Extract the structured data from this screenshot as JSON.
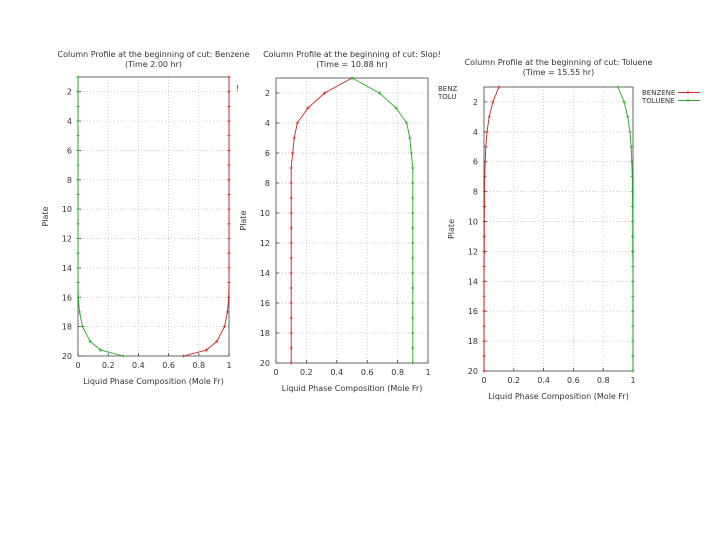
{
  "chart_data": [
    {
      "type": "line",
      "title": "Column Profile at the beginning of cut: Benzene",
      "subtitle": "(Time     2.00 hr)",
      "xlabel": "Liquid Phase Composition (Mole Fr)",
      "ylabel": "Plate",
      "xlim": [
        0,
        1
      ],
      "ylim": [
        20,
        1
      ],
      "y_inverted": true,
      "grid": true,
      "x_ticks": [
        "0",
        "0.2",
        "0.4",
        "0.6",
        "0.8",
        "1"
      ],
      "y_ticks": [
        "2",
        "4",
        "6",
        "8",
        "10",
        "12",
        "14",
        "16",
        "18",
        "20"
      ],
      "legend_text": "!",
      "colors": {
        "benzene": "#cc2222",
        "toluene": "#22aa22"
      },
      "series": [
        {
          "color": "#cc2222",
          "x": [
            1.0,
            1.0,
            1.0,
            1.0,
            1.0,
            1.0,
            1.0,
            1.0,
            1.0,
            1.0,
            1.0,
            1.0,
            1.0,
            1.0,
            1.0,
            0.998,
            0.99,
            0.97,
            0.92,
            0.85,
            0.7
          ],
          "y": [
            1,
            2,
            3,
            4,
            5,
            6,
            7,
            8,
            9,
            10,
            11,
            12,
            13,
            14,
            15,
            16,
            17,
            18,
            19,
            19.6,
            20
          ]
        },
        {
          "color": "#22aa22",
          "x": [
            0.0,
            0.0,
            0.0,
            0.0,
            0.0,
            0.0,
            0.0,
            0.0,
            0.0,
            0.0,
            0.0,
            0.0,
            0.0,
            0.0,
            0.0,
            0.002,
            0.01,
            0.03,
            0.08,
            0.15,
            0.3
          ],
          "y": [
            1,
            2,
            3,
            4,
            5,
            6,
            7,
            8,
            9,
            10,
            11,
            12,
            13,
            14,
            15,
            16,
            17,
            18,
            19,
            19.6,
            20
          ]
        }
      ]
    },
    {
      "type": "line",
      "title": "Column Profile at the beginning of cut: Slop!",
      "subtitle": "(Time = 10.88 hr)",
      "xlabel": "Liquid Phase Composition (Mole Fr)",
      "ylabel": "Plate",
      "xlim": [
        0,
        1
      ],
      "ylim": [
        20,
        1
      ],
      "y_inverted": true,
      "grid": true,
      "x_ticks": [
        "0",
        "0.2",
        "0.4",
        "0.6",
        "0.8",
        "1"
      ],
      "y_ticks": [
        "2",
        "4",
        "6",
        "8",
        "10",
        "12",
        "14",
        "16",
        "18",
        "20"
      ],
      "legend": [
        "BENZ",
        "TOLU"
      ],
      "colors": {
        "benzene": "#cc2222",
        "toluene": "#22aa22"
      },
      "series": [
        {
          "color": "#cc2222",
          "x": [
            0.5,
            0.32,
            0.21,
            0.14,
            0.12,
            0.11,
            0.1,
            0.1,
            0.1,
            0.1,
            0.1,
            0.1,
            0.1,
            0.1,
            0.1,
            0.1,
            0.1,
            0.1,
            0.1,
            0.1
          ],
          "y": [
            1,
            2,
            3,
            4,
            5,
            6,
            7,
            8,
            9,
            10,
            11,
            12,
            13,
            14,
            15,
            16,
            17,
            18,
            19,
            20
          ]
        },
        {
          "color": "#22aa22",
          "x": [
            0.5,
            0.68,
            0.79,
            0.86,
            0.88,
            0.89,
            0.9,
            0.9,
            0.9,
            0.9,
            0.9,
            0.9,
            0.9,
            0.9,
            0.9,
            0.9,
            0.9,
            0.9,
            0.9,
            0.9
          ],
          "y": [
            1,
            2,
            3,
            4,
            5,
            6,
            7,
            8,
            9,
            10,
            11,
            12,
            13,
            14,
            15,
            16,
            17,
            18,
            19,
            20
          ]
        }
      ]
    },
    {
      "type": "line",
      "title": "Column Profile at the beginning of cut: Toluene",
      "subtitle": "(Time = 15.55 hr)",
      "xlabel": "Liquid Phase Composition (Mole Fr)",
      "ylabel": "Plate",
      "xlim": [
        0,
        1
      ],
      "ylim": [
        20,
        1
      ],
      "y_inverted": true,
      "grid": true,
      "x_ticks": [
        "0",
        "0.2",
        "0.4",
        "0.6",
        "0.8",
        "1"
      ],
      "y_ticks": [
        "2",
        "4",
        "6",
        "8",
        "10",
        "12",
        "14",
        "16",
        "18",
        "20"
      ],
      "legend": [
        "BENZENE",
        "TOLUENE"
      ],
      "colors": {
        "benzene": "#cc2222",
        "toluene": "#22aa22"
      },
      "series": [
        {
          "color": "#cc2222",
          "x": [
            0.1,
            0.06,
            0.035,
            0.02,
            0.012,
            0.008,
            0.005,
            0.004,
            0.003,
            0.002,
            0.002,
            0.002,
            0.001,
            0.001,
            0.001,
            0.001,
            0.001,
            0.001,
            0.001,
            0.001
          ],
          "y": [
            1,
            2,
            3,
            4,
            5,
            6,
            7,
            8,
            9,
            10,
            11,
            12,
            13,
            14,
            15,
            16,
            17,
            18,
            19,
            20
          ]
        },
        {
          "color": "#22aa22",
          "x": [
            0.9,
            0.94,
            0.965,
            0.98,
            0.988,
            0.992,
            0.995,
            0.996,
            0.997,
            0.998,
            0.998,
            0.998,
            0.999,
            0.999,
            0.999,
            0.999,
            0.999,
            0.999,
            0.999,
            0.999
          ],
          "y": [
            1,
            2,
            3,
            4,
            5,
            6,
            7,
            8,
            9,
            10,
            11,
            12,
            13,
            14,
            15,
            16,
            17,
            18,
            19,
            20
          ]
        }
      ]
    }
  ]
}
